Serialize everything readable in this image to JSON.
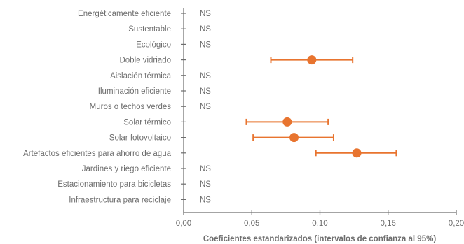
{
  "chart_data": {
    "type": "scatter",
    "subtype": "coefficient-plot-with-confidence-intervals",
    "xlabel": "Coeficientes estandarizados (intervalos de confianza al 95%)",
    "xlim": [
      0.0,
      0.2
    ],
    "x_ticks": [
      0.0,
      0.05,
      0.1,
      0.15,
      0.2
    ],
    "x_tick_labels": [
      "0,00",
      "0,05",
      "0,10",
      "0,15",
      "0,20"
    ],
    "grid": false,
    "legend": "none",
    "colors": {
      "marker": "#e8742f",
      "axis": "#6d6d6d",
      "text": "#6d6d6d"
    },
    "items": [
      {
        "label": "Energéticamente eficiente",
        "significance": "NS"
      },
      {
        "label": "Sustentable",
        "significance": "NS"
      },
      {
        "label": "Ecológico",
        "significance": "NS"
      },
      {
        "label": "Doble vidriado",
        "estimate": 0.094,
        "ci_low": 0.064,
        "ci_high": 0.124
      },
      {
        "label": "Aislación térmica",
        "significance": "NS"
      },
      {
        "label": "Iluminación eficiente",
        "significance": "NS"
      },
      {
        "label": "Muros o techos verdes",
        "significance": "NS"
      },
      {
        "label": "Solar térmico",
        "estimate": 0.076,
        "ci_low": 0.046,
        "ci_high": 0.106
      },
      {
        "label": "Solar fotovoltaico",
        "estimate": 0.081,
        "ci_low": 0.051,
        "ci_high": 0.11
      },
      {
        "label": "Artefactos eficientes para ahorro de agua",
        "estimate": 0.127,
        "ci_low": 0.097,
        "ci_high": 0.156
      },
      {
        "label": "Jardines y riego eficiente",
        "significance": "NS"
      },
      {
        "label": "Estacionamiento para bicicletas",
        "significance": "NS"
      },
      {
        "label": "Infraestructura para reciclaje",
        "significance": "NS"
      }
    ]
  }
}
